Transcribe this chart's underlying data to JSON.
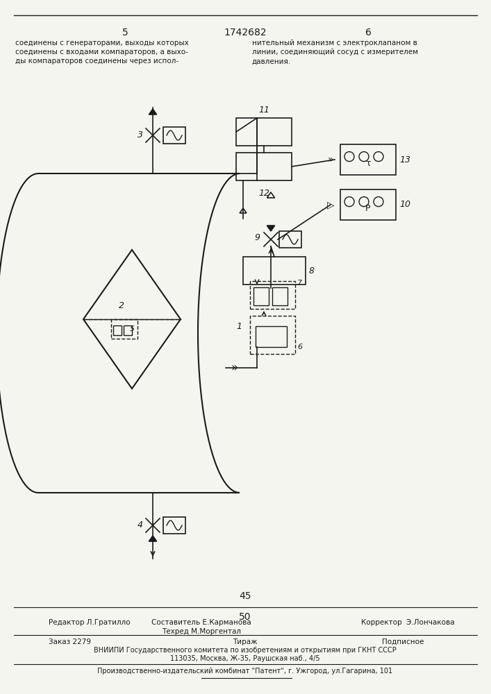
{
  "bg_color": "#f5f5f0",
  "line_color": "#1a1a1a",
  "page_number_center": "1742682",
  "page_number_left": "5",
  "page_number_right": "6",
  "text_top_left": "соединены с генераторами, выходы которых\nсоединены с входами компараторов, а выхо-\nды компараторов соединены через испол-",
  "text_top_right": "нительный механизм с электроклапаном в\nлинии, соединяющий сосуд с измерителем\nдавления.",
  "text_bottom_1": "45",
  "text_bottom_2": "50",
  "editor_line": "Редактор Л.Гратилло",
  "compositor_line": "Составитель Е.Карманова\nТехред М.Моргентал",
  "corrector_line": "Корректор  Э.Лончакова",
  "order_line": "Заказ 2279",
  "tirage_line": "Тираж",
  "subscription_line": "Подписное",
  "vniip_line": "ВНИИПИ Государственного комитета по изобретениям и открытиям при ГКНТ СССР",
  "address_line": "113035, Москва, Ж-35, Раушская наб., 4/5",
  "production_line": "Производственно-издательский комбинат \"Патент\", г. Ужгород, ул.Гагарина, 101"
}
